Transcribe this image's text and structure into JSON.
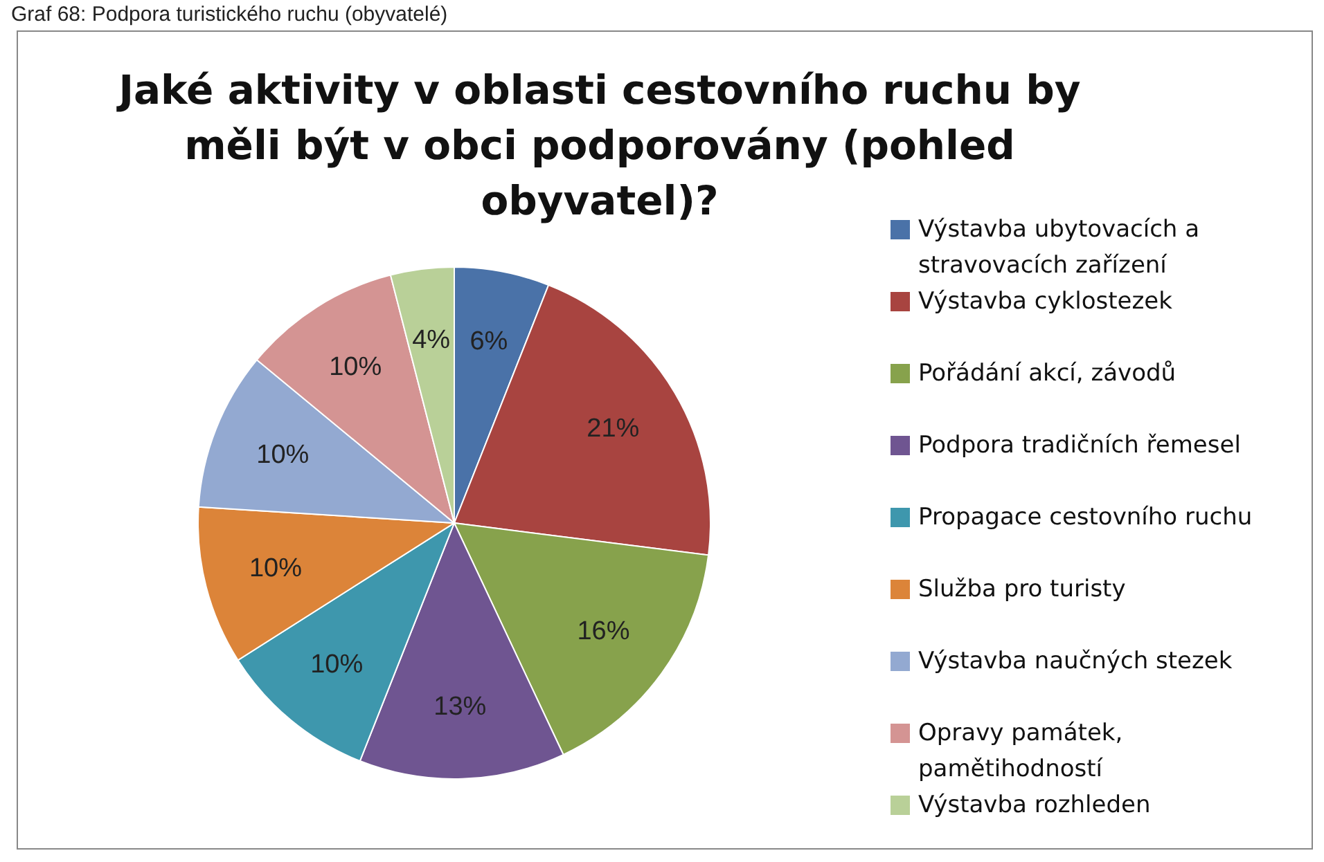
{
  "chart_data": {
    "type": "pie",
    "title": "Jaké aktivity v oblasti cestovního ruchu by měli být v obci podporovány (pohled obyvatel)?",
    "annotations": [
      "Graf 68: Podpora turistického ruchu (obyvatelé)"
    ],
    "categories": [
      "Výstavba ubytovacích a stravovacích zařízení",
      "Výstavba cyklostezek",
      "Pořádání akcí, závodů",
      "Podpora tradičních řemesel",
      "Propagace cestovního ruchu",
      "Služba pro turisty",
      "Výstavba naučných stezek",
      "Opravy památek, pamětihodností",
      "Výstavba rozhleden"
    ],
    "values": [
      6,
      21,
      16,
      13,
      10,
      10,
      10,
      10,
      4
    ],
    "value_labels": [
      "6%",
      "21%",
      "16%",
      "13%",
      "10%",
      "10%",
      "10%",
      "10%",
      "4%"
    ],
    "colors": [
      "#4a72a8",
      "#a84440",
      "#87a24c",
      "#6f5591",
      "#3e97ad",
      "#dc8439",
      "#93a9d1",
      "#d49493",
      "#b9d098"
    ],
    "legend": "right"
  }
}
